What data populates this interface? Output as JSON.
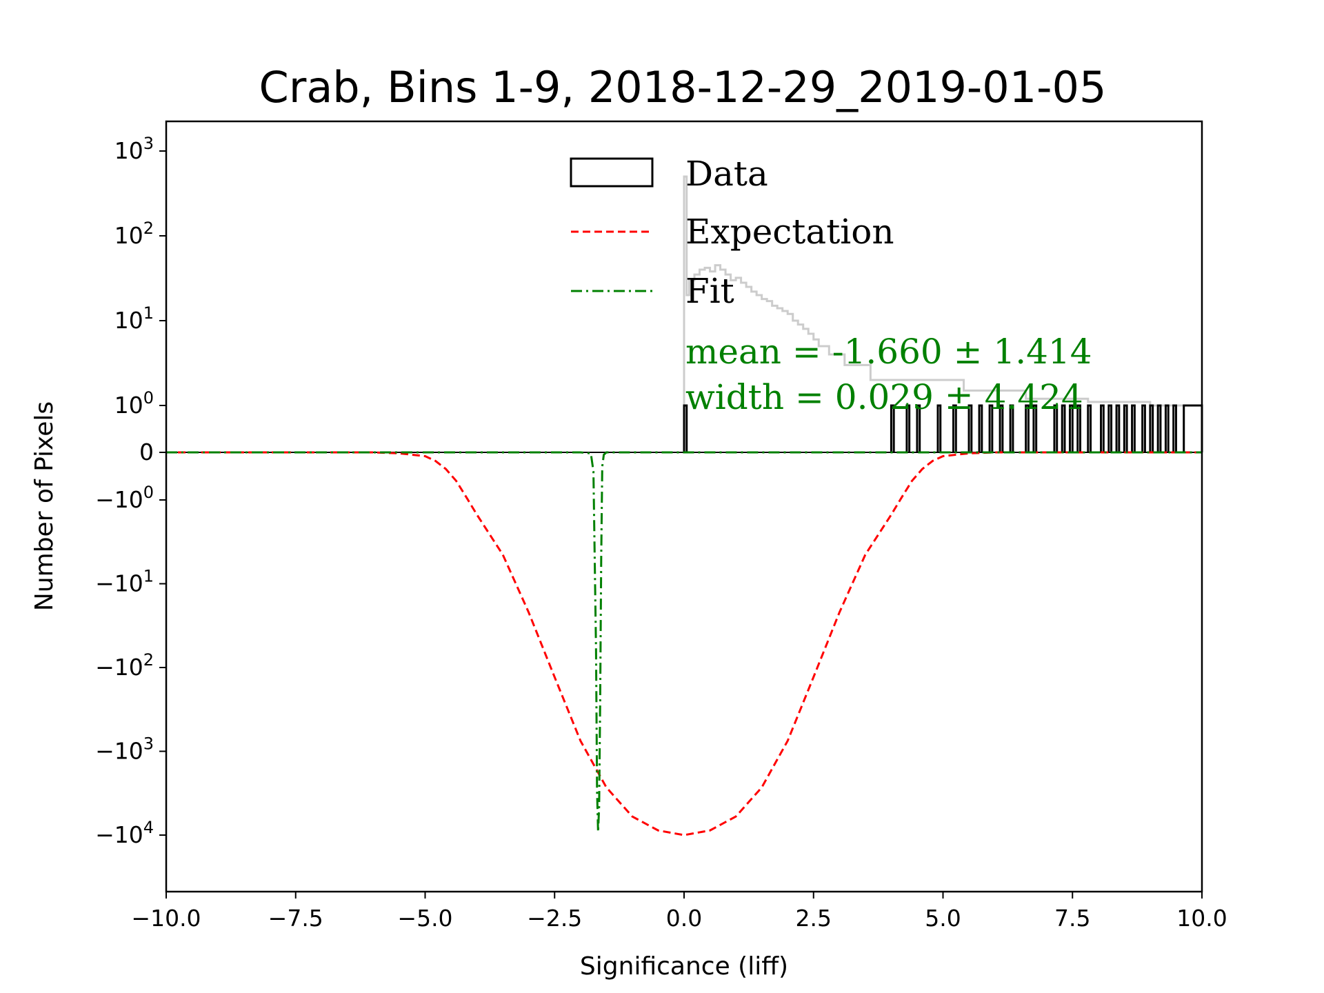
{
  "chart_data": {
    "type": "histogram",
    "title": "Crab, Bins 1-9, 2018-12-29_2019-01-05",
    "xlabel": "Significance (liff)",
    "ylabel": "Number of Pixels",
    "xlim": [
      -10.0,
      10.0
    ],
    "yscale": "symlog",
    "ylim": [
      -30000,
      1500
    ],
    "x_ticks": [
      -10.0,
      -7.5,
      -5.0,
      -2.5,
      0.0,
      2.5,
      5.0,
      7.5,
      10.0
    ],
    "x_tick_labels": [
      "−10.0",
      "−7.5",
      "−5.0",
      "−2.5",
      "0.0",
      "2.5",
      "5.0",
      "7.5",
      "10.0"
    ],
    "y_ticks": [
      {
        "value": 1000,
        "base": "10",
        "exp": "3",
        "neg": false
      },
      {
        "value": 100,
        "base": "10",
        "exp": "2",
        "neg": false
      },
      {
        "value": 10,
        "base": "10",
        "exp": "1",
        "neg": false
      },
      {
        "value": 1,
        "base": "10",
        "exp": "0",
        "neg": false
      },
      {
        "value": 0,
        "base": "0",
        "exp": "",
        "neg": false
      },
      {
        "value": -1,
        "base": "10",
        "exp": "0",
        "neg": true
      },
      {
        "value": -10,
        "base": "10",
        "exp": "1",
        "neg": true
      },
      {
        "value": -100,
        "base": "10",
        "exp": "2",
        "neg": true
      },
      {
        "value": -1000,
        "base": "10",
        "exp": "3",
        "neg": true
      },
      {
        "value": -10000,
        "base": "10",
        "exp": "4",
        "neg": true
      }
    ],
    "legend": {
      "position": "upper-center",
      "entries": [
        {
          "label": "Data",
          "style": "box",
          "color": "#000000"
        },
        {
          "label": "Expectation",
          "style": "dashed",
          "color": "#ff0000"
        },
        {
          "label": "Fit",
          "style": "dashdot",
          "color": "#008000"
        }
      ]
    },
    "annotations": [
      {
        "text": "mean = -1.660 ± 1.414",
        "color": "#008000"
      },
      {
        "text": "width = 0.029 ± 4.424",
        "color": "#008000"
      }
    ],
    "series": [
      {
        "name": "Data",
        "kind": "step-histogram",
        "color": "#000000",
        "bins": [
          [
            0.0,
            0.05,
            1
          ],
          [
            4.0,
            4.05,
            1
          ],
          [
            4.3,
            4.35,
            1
          ],
          [
            4.5,
            4.55,
            1
          ],
          [
            4.9,
            4.95,
            1
          ],
          [
            5.2,
            5.25,
            1
          ],
          [
            5.5,
            5.55,
            1
          ],
          [
            5.7,
            5.75,
            1
          ],
          [
            5.9,
            5.95,
            1
          ],
          [
            6.1,
            6.15,
            1
          ],
          [
            6.3,
            6.35,
            1
          ],
          [
            6.6,
            6.65,
            1
          ],
          [
            6.75,
            6.8,
            1
          ],
          [
            7.15,
            7.2,
            1
          ],
          [
            7.3,
            7.35,
            1
          ],
          [
            7.45,
            7.5,
            1
          ],
          [
            7.6,
            7.65,
            1
          ],
          [
            7.8,
            7.85,
            1
          ],
          [
            8.05,
            8.1,
            1
          ],
          [
            8.2,
            8.25,
            1
          ],
          [
            8.35,
            8.4,
            1
          ],
          [
            8.5,
            8.55,
            1
          ],
          [
            8.65,
            8.7,
            1
          ],
          [
            8.85,
            8.9,
            1
          ],
          [
            9.0,
            9.05,
            1
          ],
          [
            9.15,
            9.2,
            1
          ],
          [
            9.3,
            9.35,
            1
          ],
          [
            9.45,
            9.5,
            1
          ],
          [
            9.65,
            10.0,
            1
          ]
        ]
      },
      {
        "name": "Background histogram",
        "kind": "step-histogram",
        "color": "#cccccc",
        "x": [
          0.0,
          0.05,
          0.1,
          0.2,
          0.3,
          0.4,
          0.5,
          0.6,
          0.7,
          0.8,
          0.9,
          1.0,
          1.1,
          1.2,
          1.3,
          1.4,
          1.5,
          1.6,
          1.7,
          1.8,
          1.9,
          2.0,
          2.1,
          2.2,
          2.3,
          2.4,
          2.5,
          2.6,
          2.7,
          2.8,
          2.9,
          3.0,
          3.1,
          3.2,
          3.3,
          3.4,
          3.5,
          3.6,
          3.7,
          3.8,
          3.9,
          4.0,
          4.2,
          4.4,
          4.6,
          4.8,
          5.0,
          5.2,
          5.4,
          5.6,
          5.8,
          6.0,
          6.2,
          6.4,
          6.6,
          6.8,
          7.0,
          7.2,
          7.4,
          7.6,
          7.8,
          8.0,
          8.2,
          8.4,
          8.6,
          8.8,
          9.0,
          9.2,
          9.4,
          9.65
        ],
        "y": [
          500,
          20,
          30,
          35,
          40,
          42,
          38,
          45,
          40,
          35,
          30,
          32,
          28,
          25,
          22,
          20,
          18,
          17,
          15,
          14,
          13,
          12,
          10,
          9,
          8,
          7,
          6,
          5,
          5,
          4,
          4,
          4,
          3,
          3,
          3,
          3,
          3,
          2,
          2,
          2,
          2,
          2,
          2,
          2,
          2,
          2,
          2,
          2,
          1.5,
          1.5,
          1.5,
          1.5,
          1.5,
          1.5,
          1.2,
          1.2,
          1.2,
          1.2,
          1.2,
          1.2,
          1.1,
          1.1,
          1.1,
          1.1,
          1.1,
          1.1,
          1.0,
          1.0,
          1.0,
          1.0
        ]
      },
      {
        "name": "Expectation",
        "kind": "curve",
        "color": "#ff0000",
        "style": "dashed",
        "x": [
          -10.0,
          -8.0,
          -6.0,
          -5.5,
          -5.0,
          -4.8,
          -4.6,
          -4.4,
          -4.2,
          -4.0,
          -3.5,
          -3.0,
          -2.5,
          -2.0,
          -1.5,
          -1.0,
          -0.5,
          0.0,
          0.5,
          1.0,
          1.5,
          2.0,
          2.5,
          3.0,
          3.5,
          4.0,
          4.2,
          4.4,
          4.6,
          4.8,
          5.0,
          5.5,
          6.0,
          8.0,
          10.0
        ],
        "y": [
          0,
          0,
          0,
          -0.02,
          -0.08,
          -0.18,
          -0.35,
          -0.6,
          -0.95,
          -1.5,
          -4.5,
          -22,
          -130,
          -750,
          -2700,
          -6000,
          -8800,
          -10000,
          -8800,
          -6000,
          -2700,
          -750,
          -130,
          -22,
          -4.5,
          -1.5,
          -0.95,
          -0.6,
          -0.35,
          -0.18,
          -0.08,
          -0.02,
          0,
          0,
          0
        ]
      },
      {
        "name": "Fit",
        "kind": "curve",
        "color": "#008000",
        "style": "dashdot",
        "x": [
          -10.0,
          -2.0,
          -1.8,
          -1.75,
          -1.7,
          -1.68,
          -1.66,
          -1.64,
          -1.62,
          -1.6,
          -1.58,
          -1.55,
          -1.5,
          -1.4,
          0.0,
          10.0
        ],
        "y": [
          0,
          0,
          -0.02,
          -0.4,
          -60,
          -3000,
          -9200,
          -4500,
          -250,
          -5,
          -0.3,
          -0.05,
          0,
          0,
          0,
          0
        ]
      }
    ]
  }
}
